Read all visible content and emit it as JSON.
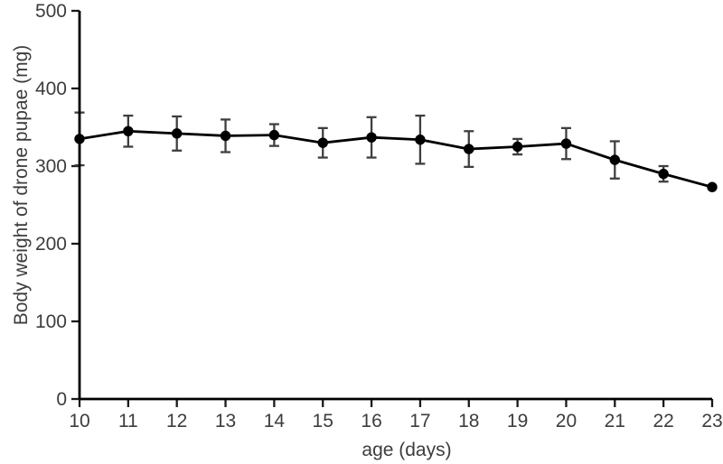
{
  "figure": {
    "background": "#ffffff"
  },
  "chart_data": {
    "type": "line",
    "title": "",
    "xlabel": "age (days)",
    "ylabel": "Body weight of drone pupae (mg)",
    "x": [
      10,
      11,
      12,
      13,
      14,
      15,
      16,
      17,
      18,
      19,
      20,
      21,
      22,
      23
    ],
    "series": [
      {
        "name": "Body weight of drone pupae",
        "values": [
          335,
          345,
          342,
          339,
          340,
          330,
          337,
          334,
          322,
          325,
          329,
          308,
          290,
          273
        ],
        "errors": [
          34,
          20,
          22,
          21,
          14,
          19,
          26,
          31,
          23,
          10,
          20,
          24,
          10,
          0
        ]
      }
    ],
    "xlim": [
      10,
      23
    ],
    "ylim": [
      0,
      500
    ],
    "x_ticks": [
      10,
      11,
      12,
      13,
      14,
      15,
      16,
      17,
      18,
      19,
      20,
      21,
      22,
      23
    ],
    "y_ticks": [
      0,
      100,
      200,
      300,
      400,
      500
    ],
    "grid": false,
    "legend": false,
    "marker": "filled-circle",
    "error_bars": true,
    "colors": {
      "line": "#000000",
      "marker": "#000000",
      "error_bar": "#3f3f3f",
      "axis": "#000000",
      "tick": "#1a1a1a",
      "tick_label": "#3d3d3d",
      "axis_title": "#3d3d3d"
    }
  }
}
